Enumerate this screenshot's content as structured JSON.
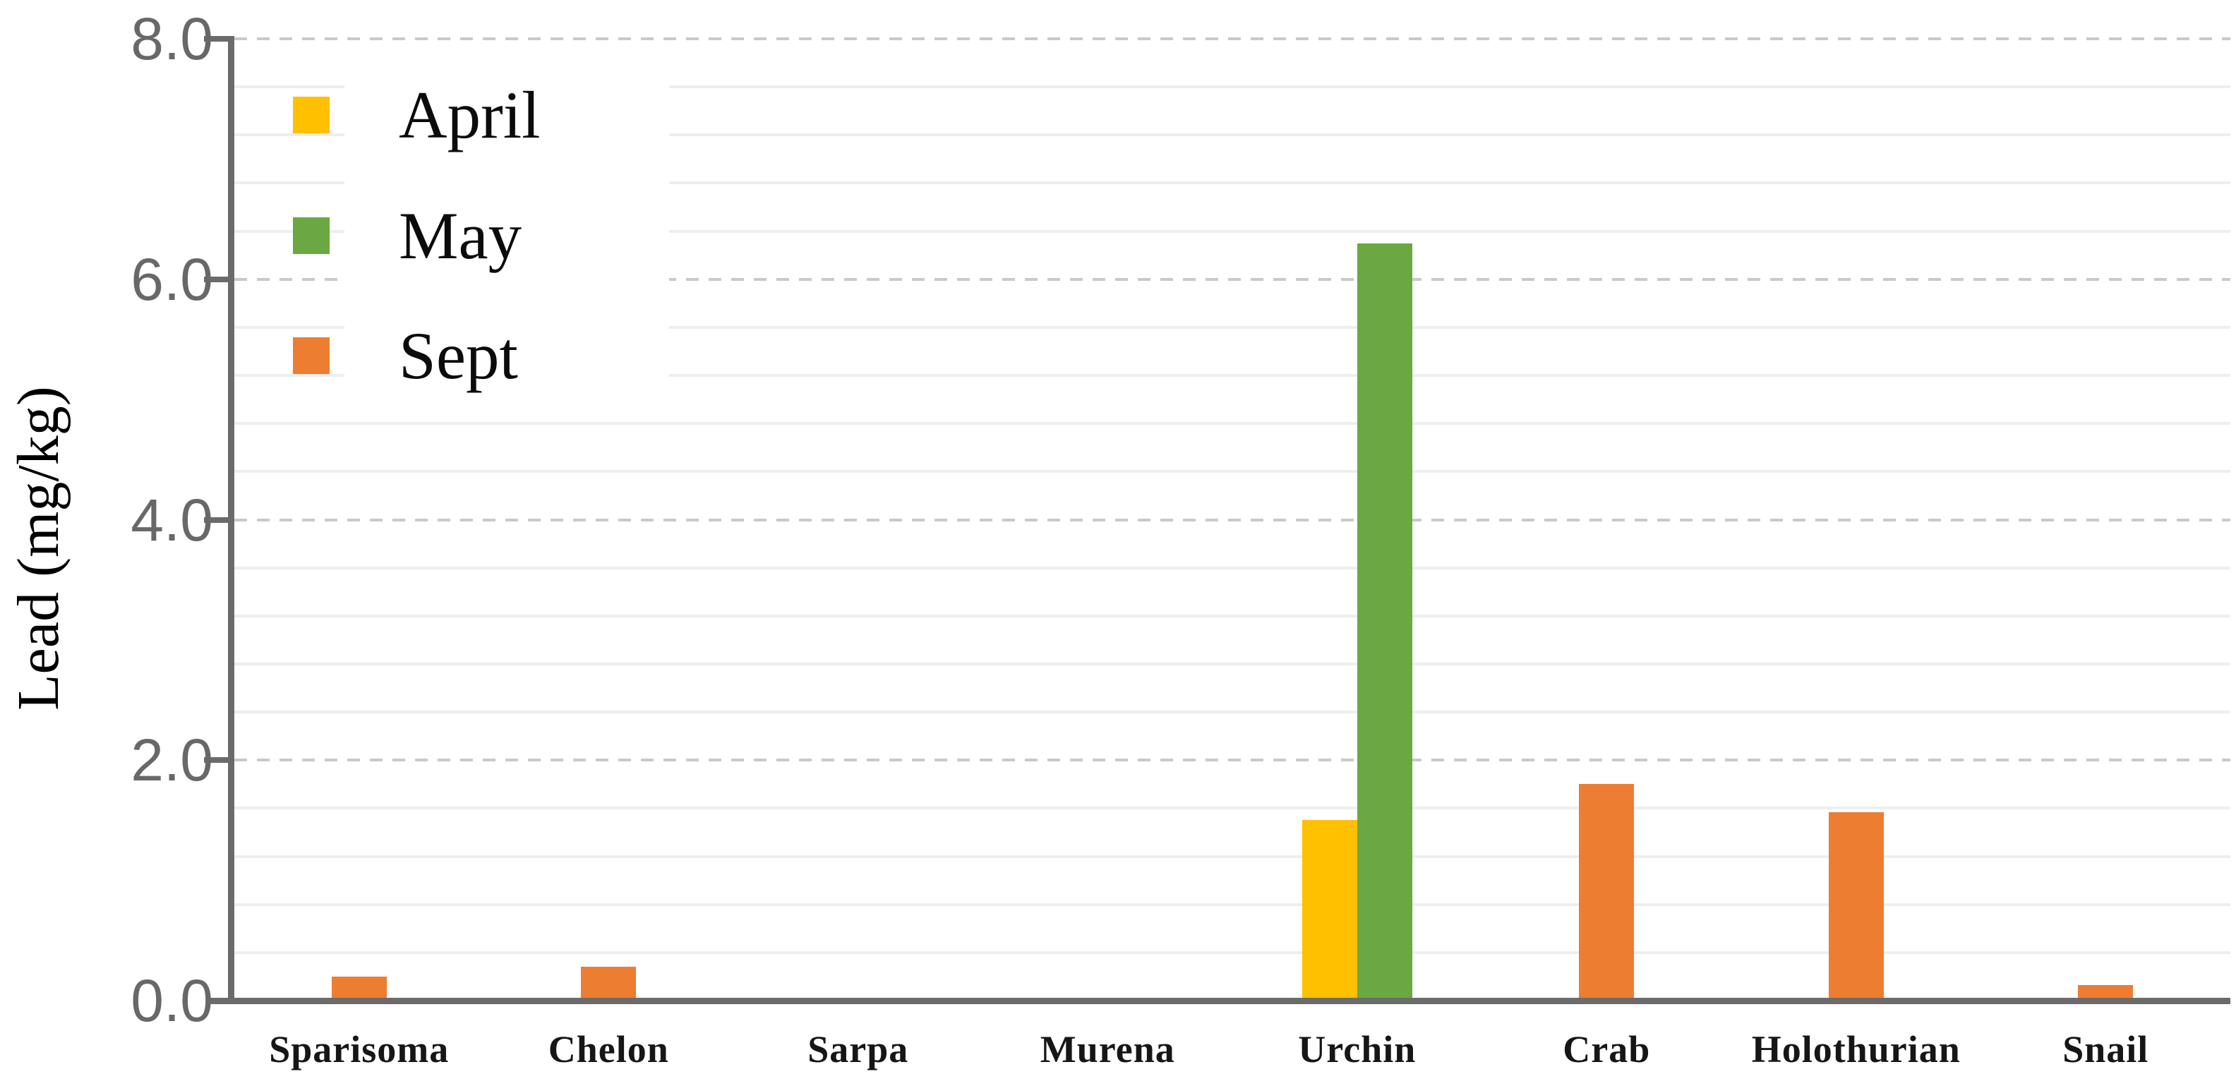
{
  "figure": {
    "background": "#ffffff"
  },
  "chart_data": {
    "type": "bar",
    "title": "",
    "xlabel": "",
    "ylabel": "Lead (mg/kg)",
    "categories": [
      "Sparisoma",
      "Chelon",
      "Sarpa",
      "Murena",
      "Urchin",
      "Crab",
      "Holothurian",
      "Snail"
    ],
    "series": [
      {
        "name": "April",
        "color": "#FFC000",
        "values": [
          0,
          0,
          0,
          0,
          1.5,
          0,
          0,
          0
        ]
      },
      {
        "name": "May",
        "color": "#6AA842",
        "values": [
          0,
          0,
          0,
          0,
          6.3,
          0,
          0,
          0
        ]
      },
      {
        "name": "Sept",
        "color": "#ED7D31",
        "values": [
          0.2,
          0.28,
          0,
          0,
          0,
          1.8,
          1.57,
          0.13
        ]
      }
    ],
    "ylim": [
      0,
      8
    ],
    "y_major_step": 2,
    "y_minor_step": 0.4,
    "y_tick_labels": [
      "0.0",
      "2.0",
      "4.0",
      "6.0",
      "8.0"
    ],
    "grid": {
      "major_style": "dashed",
      "minor_style": "solid",
      "vertical": "off"
    },
    "legend": {
      "position": "top-left-inside",
      "entries": [
        "April",
        "May",
        "Sept"
      ]
    },
    "colors": {
      "axis": "#6b6b6b",
      "y_tick_label": "#686868",
      "major_grid": "#c9c9c9",
      "minor_grid": "#eeeeee",
      "category_label": "#161616"
    }
  }
}
